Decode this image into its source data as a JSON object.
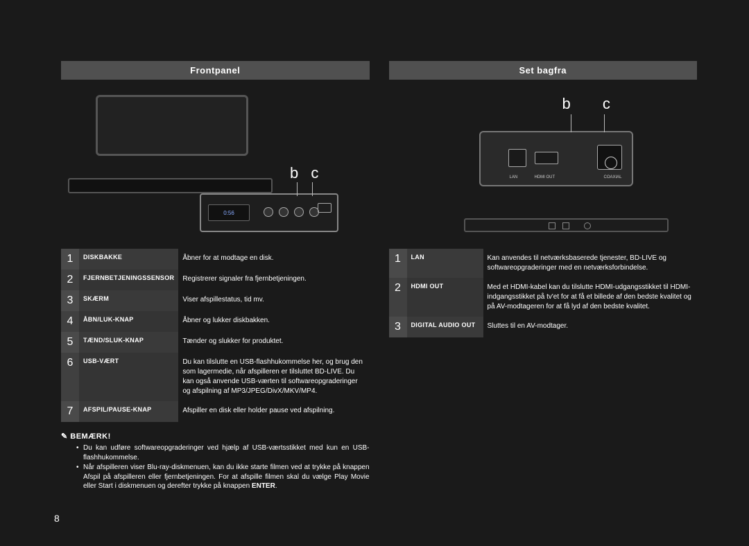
{
  "page_number": "8",
  "left": {
    "header": "Frontpanel",
    "callout_letters": "b c",
    "display_readout": "0:56",
    "table": [
      {
        "n": "1",
        "name": "DISKBAKKE",
        "desc": "Åbner for at modtage en disk."
      },
      {
        "n": "2",
        "name": "FJERNBETJENINGSSENSOR",
        "desc": "Registrerer signaler fra fjernbetjeningen."
      },
      {
        "n": "3",
        "name": "SKÆRM",
        "desc": "Viser afspillestatus, tid mv."
      },
      {
        "n": "4",
        "name": "ÅBN/LUK-KNAP",
        "desc": "Åbner og lukker diskbakken."
      },
      {
        "n": "5",
        "name": "TÆND/SLUK-KNAP",
        "desc": "Tænder og slukker for produktet."
      },
      {
        "n": "6",
        "name": "USB-VÆRT",
        "desc": "Du kan tilslutte en USB-flashhukommelse her, og brug den som lagermedie, når afspilleren er tilsluttet BD-LIVE. Du kan også anvende USB-værten til softwareopgraderinger og afspilning af MP3/JPEG/DivX/MKV/MP4."
      },
      {
        "n": "7",
        "name": "AFSPIL/PAUSE-KNAP",
        "desc": "Afspiller en disk eller holder pause ved afspilning."
      }
    ],
    "note_title": "BEMÆRK!",
    "notes": [
      "Du kan udføre softwareopgraderinger ved hjælp af USB-værtsstikket med kun en USB-flashhukommelse.",
      "Når afspilleren viser Blu-ray-diskmenuen, kan du ikke starte filmen ved at trykke på knappen Afspil på afspilleren eller fjernbetjeningen. For at afspille filmen skal du vælge Play Movie eller Start i diskmenuen og derefter trykke på knappen ENTER."
    ],
    "enter_word": "ENTER"
  },
  "right": {
    "header": "Set bagfra",
    "callout_letters": "b   c",
    "port_labels": {
      "lan": "LAN",
      "hdmi": "HDMI OUT",
      "coax_top": "DIGITAL AUDIO OUT",
      "coax_bottom": "COAXIAL"
    },
    "table": [
      {
        "n": "1",
        "name": "LAN",
        "desc": "Kan anvendes til netværksbaserede tjenester, BD-LIVE og softwareopgraderinger med en netværksforbindelse."
      },
      {
        "n": "2",
        "name": "HDMI OUT",
        "desc": "Med et HDMI-kabel kan du tilslutte HDMI-udgangsstikket til HDMI-indgangsstikket på tv'et for at få et billede af den bedste kvalitet og på AV-modtageren for at få lyd af den bedste kvalitet."
      },
      {
        "n": "3",
        "name": "DIGITAL AUDIO OUT",
        "desc": "Sluttes til en AV-modtager."
      }
    ]
  },
  "colors": {
    "bg": "#1a1a1a",
    "header_bg": "#505050",
    "num_bg": "#4a4a4a",
    "name_bg": "#3a3a3a"
  }
}
